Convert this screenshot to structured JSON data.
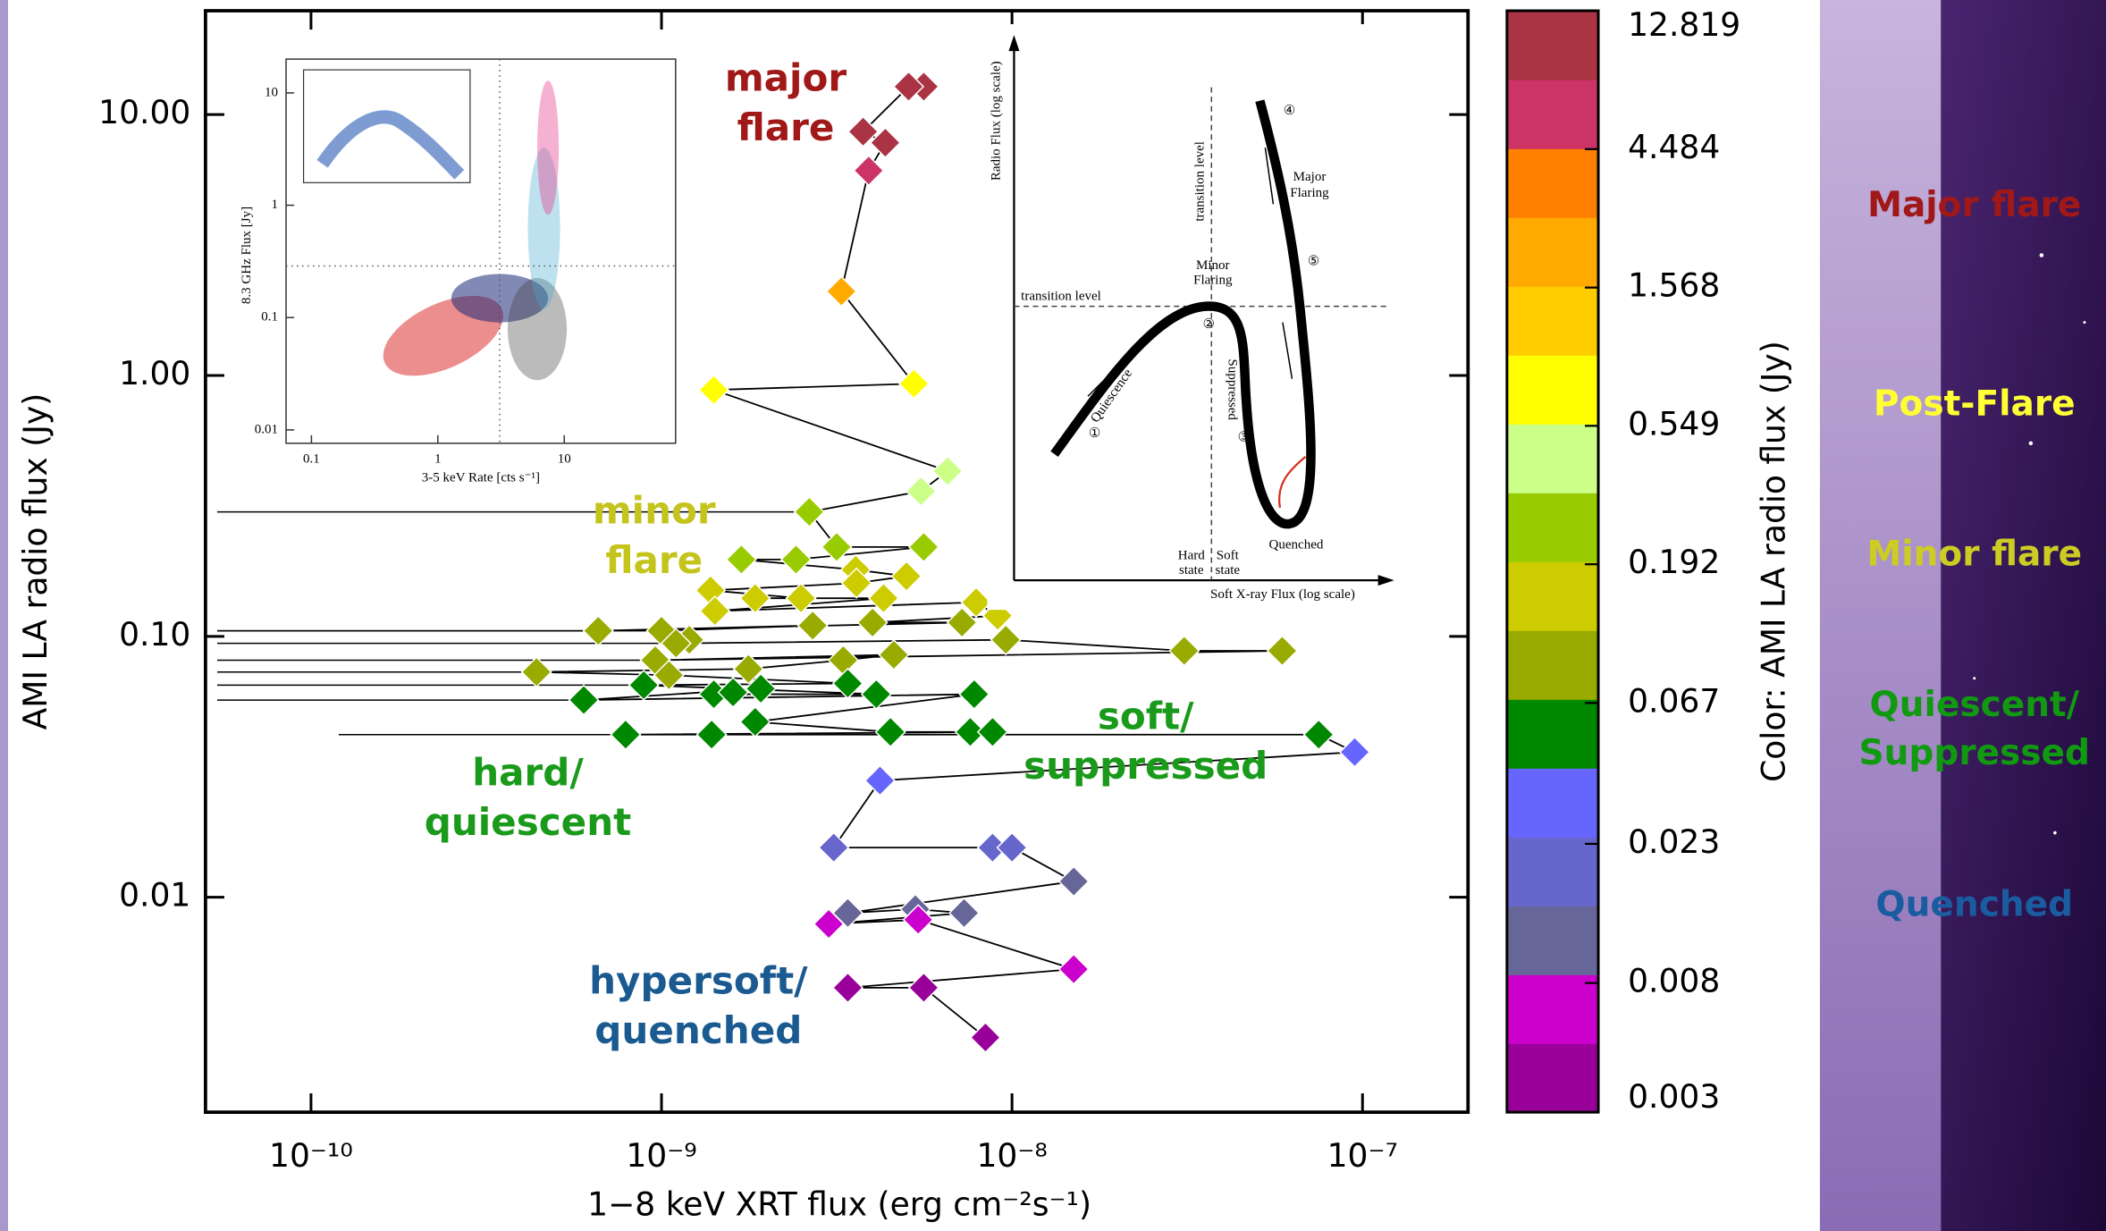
{
  "chart_data": {
    "type": "scatter",
    "x_label": "1−8 keV XRT flux (erg cm⁻²s⁻¹)",
    "y_label": "AMI LA radio flux (Jy)",
    "x_scale": "log",
    "y_scale": "log",
    "xlim": [
      5e-11,
      2e-07
    ],
    "ylim": [
      0.0015,
      25
    ],
    "xticks": [
      {
        "value": 1e-10,
        "label": "10⁻¹⁰"
      },
      {
        "value": 1e-09,
        "label": "10⁻⁹"
      },
      {
        "value": 1e-08,
        "label": "10⁻⁸"
      },
      {
        "value": 1e-07,
        "label": "10⁻⁷"
      }
    ],
    "yticks": [
      {
        "value": 10,
        "label": "10.00"
      },
      {
        "value": 1,
        "label": "1.00"
      },
      {
        "value": 0.1,
        "label": "0.10"
      },
      0.01
    ],
    "series": [
      {
        "x": [
          5.6e-09,
          5.07e-09,
          3.76e-09,
          4.35e-09,
          3.9e-09,
          3.26e-09,
          5.25e-09,
          1.41e-09,
          6.55e-09,
          5.5e-09,
          2.64e-09,
          3.16e-09,
          5.6e-09,
          2.42e-09,
          1.69e-09,
          3.58e-09,
          5e-09,
          3.6e-09,
          1.38e-09,
          2.5e-09,
          1.85e-09,
          4.3e-09,
          1.42e-09,
          7.9e-09,
          9.1e-09,
          4e-09,
          7.2e-09,
          6.6e-10,
          2.7e-09,
          1e-09,
          1.2e-09,
          1.1e-09,
          9.6e-09,
          3.1e-08,
          5.9e-08,
          9.6e-10,
          4.6e-09,
          3.3e-09,
          1.77e-09,
          4.4e-10,
          1.05e-09,
          3.4e-09,
          8.9e-10,
          4.1e-09,
          1.41e-09,
          1.6e-09,
          1.92e-09,
          6e-10,
          7.8e-09,
          1.85e-09,
          4.5e-09,
          7.6e-09,
          8.8e-09,
          7.9e-10,
          1.39e-09,
          7.5e-08,
          9.5e-08,
          4.2e-09,
          3.1e-09,
          8.8e-09,
          1e-08,
          1.5e-08,
          3.4e-09,
          5.3e-09,
          7.3e-09,
          3e-09,
          5.4e-09,
          1.5e-08,
          3.4e-09,
          5.6e-09,
          8.4e-09
        ],
        "values": [
          12.8,
          12.8,
          8.6,
          7.8,
          6.1,
          2.1,
          0.93,
          0.88,
          0.43,
          0.36,
          0.3,
          0.22,
          0.22,
          0.197,
          0.197,
          0.18,
          0.17,
          0.16,
          0.15,
          0.14,
          0.14,
          0.14,
          0.125,
          0.135,
          0.12,
          0.113,
          0.113,
          0.105,
          0.11,
          0.105,
          0.097,
          0.094,
          0.097,
          0.088,
          0.088,
          0.081,
          0.085,
          0.081,
          0.075,
          0.073,
          0.071,
          0.066,
          0.065,
          0.06,
          0.06,
          0.061,
          0.063,
          0.057,
          0.06,
          0.047,
          0.043,
          0.043,
          0.043,
          0.042,
          0.042,
          0.042,
          0.036,
          0.028,
          0.0155,
          0.0155,
          0.0155,
          0.0115,
          0.0087,
          0.009,
          0.0087,
          0.0079,
          0.0082,
          0.0053,
          0.0045,
          0.0045,
          0.0029
        ],
        "x_lower": [
          null,
          null,
          null,
          null,
          null,
          null,
          null,
          null,
          null,
          null,
          5.4e-11,
          null,
          null,
          null,
          null,
          null,
          null,
          null,
          null,
          null,
          null,
          null,
          null,
          null,
          null,
          null,
          null,
          5.4e-11,
          null,
          5.4e-11,
          null,
          5.4e-11,
          null,
          null,
          null,
          5.4e-11,
          null,
          null,
          null,
          5.4e-11,
          null,
          null,
          5.4e-11,
          null,
          null,
          null,
          null,
          5.4e-11,
          null,
          null,
          null,
          null,
          null,
          1.2e-10,
          null,
          null,
          null,
          null,
          null,
          null,
          null,
          null,
          null,
          null,
          null,
          null,
          null,
          null,
          null,
          null,
          null
        ]
      }
    ],
    "colorbar": {
      "label": "Color: AMI LA radio flux (Jy)",
      "scale": "log",
      "lim": [
        0.003,
        12.819
      ],
      "ticks": [
        0.003,
        0.008,
        0.023,
        0.067,
        0.192,
        0.549,
        1.568,
        4.484,
        12.819
      ],
      "colors": [
        "#990099",
        "#cc00cc",
        "#666699",
        "#6666cc",
        "#6666ff",
        "#008800",
        "#99aa00",
        "#cccc00",
        "#99cc00",
        "#ccff88",
        "#ffff00",
        "#ffcc00",
        "#ffaa00",
        "#ff8000",
        "#cc3366",
        "#aa3344"
      ]
    },
    "annotations": [
      {
        "lines": [
          "major",
          "flare"
        ],
        "color": "#a01818"
      },
      {
        "lines": [
          "minor",
          "flare"
        ],
        "color": "#c4c41c"
      },
      {
        "lines": [
          "hard/",
          "quiescent"
        ],
        "color": "#1a9a1a"
      },
      {
        "lines": [
          "soft/",
          "suppressed"
        ],
        "color": "#1a9a1a"
      },
      {
        "lines": [
          "hypersoft/",
          "quenched"
        ],
        "color": "#1a5a90"
      }
    ],
    "insets": [
      {
        "y_label": "8.3 GHz Flux [Jy]",
        "x_label": "3-5 keV Rate [cts s⁻¹]",
        "xlim": [
          0.063,
          76
        ],
        "ylim": [
          0.0076,
          20
        ],
        "xticks": [
          0.1,
          1,
          10
        ],
        "yticks": [
          10,
          1,
          0.1,
          0.01
        ]
      },
      {
        "labels": [
          "Radio Flux (log scale)",
          "Soft X-ray Flux (log scale)",
          "transition level",
          "transition level",
          "Minor",
          "Flaring",
          "Major",
          "Flaring",
          "Quiescence",
          "Suppressed",
          "Quenched",
          "Hard",
          "state",
          "Soft",
          "state",
          "①",
          "②",
          "③",
          "④",
          "⑤"
        ]
      }
    ]
  },
  "side_panel": {
    "labels": [
      {
        "lines": [
          "Major flare"
        ],
        "color": "#a01818"
      },
      {
        "lines": [
          "Post-Flare"
        ],
        "color": "#ffff33"
      },
      {
        "lines": [
          "Minor flare"
        ],
        "color": "#cccc22"
      },
      {
        "lines": [
          "Quiescent/",
          "Suppressed"
        ],
        "color": "#119911"
      },
      {
        "lines": [
          "Quenched"
        ],
        "color": "#1a5ca0"
      }
    ]
  }
}
